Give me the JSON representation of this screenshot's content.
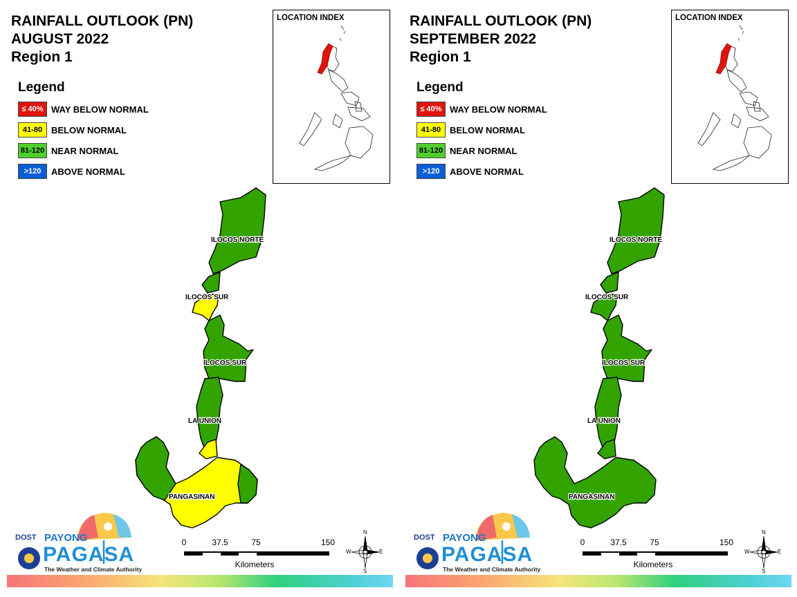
{
  "colors": {
    "way_below": "#e0140c",
    "below": "#ffff00",
    "near": "#33a300",
    "above": "#0a5ed7",
    "loc_highlight": "#e0140c"
  },
  "legend": {
    "heading": "Legend",
    "items": [
      {
        "range": "≤ 40%",
        "label": "WAY BELOW NORMAL",
        "color": "#e0140c",
        "text_color": "#ffffff"
      },
      {
        "range": "41-80",
        "label": "BELOW NORMAL",
        "color": "#ffff00",
        "text_color": "#000000"
      },
      {
        "range": "81-120",
        "label": "NEAR NORMAL",
        "color": "#4fcf2c",
        "text_color": "#000000"
      },
      {
        "range": ">120",
        "label": "ABOVE NORMAL",
        "color": "#0a5ed7",
        "text_color": "#ffffff"
      }
    ]
  },
  "location_index_label": "LOCATION INDEX",
  "maps": [
    {
      "title_line1": "RAINFALL OUTLOOK (PN)",
      "title_line2": "AUGUST 2022",
      "title_line3": "Region 1",
      "provinces": [
        {
          "name": "ILOCOS NORTE",
          "category": "near"
        },
        {
          "name": "ILOCOS SUR",
          "category": "below"
        },
        {
          "name": "ILOCOS SUR",
          "category": "near"
        },
        {
          "name": "LA UNION",
          "category": "near"
        },
        {
          "name": "PANGASINAN",
          "category": "below"
        }
      ]
    },
    {
      "title_line1": "RAINFALL OUTLOOK (PN)",
      "title_line2": "SEPTEMBER 2022",
      "title_line3": "Region 1",
      "provinces": [
        {
          "name": "ILOCOS NORTE",
          "category": "near"
        },
        {
          "name": "ILOCOS SUR",
          "category": "near"
        },
        {
          "name": "ILOCOS SUR",
          "category": "near"
        },
        {
          "name": "LA UNION",
          "category": "near"
        },
        {
          "name": "PANGASINAN",
          "category": "near"
        }
      ]
    }
  ],
  "scale": {
    "ticks": [
      "0",
      "37.5",
      "75",
      "150"
    ],
    "unit": "Kilometers"
  },
  "compass": {
    "n": "N",
    "e": "E",
    "s": "S",
    "w": "W"
  },
  "logo": {
    "dost": "DOST",
    "payong": "PAYONG",
    "pagasa": "PAGASA",
    "tagline": "The Weather and Climate Authority"
  }
}
